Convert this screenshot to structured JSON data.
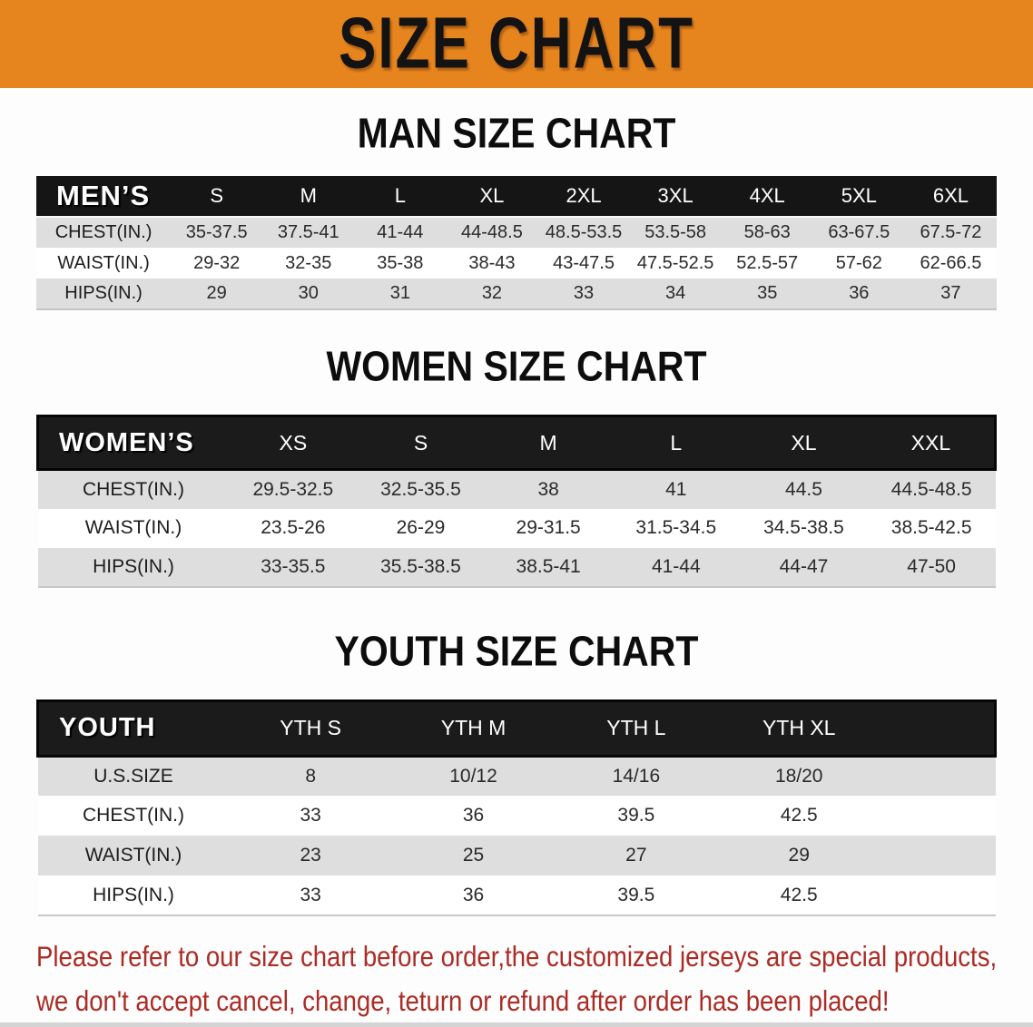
{
  "banner": {
    "title": "SIZE CHART"
  },
  "sections": [
    {
      "title": "MAN SIZE CHART",
      "header_label": "MEN’S",
      "columns": [
        "S",
        "M",
        "L",
        "XL",
        "2XL",
        "3XL",
        "4XL",
        "5XL",
        "6XL"
      ],
      "rows": [
        {
          "label": "CHEST(IN.)",
          "values": [
            "35-37.5",
            "37.5-41",
            "41-44",
            "44-48.5",
            "48.5-53.5",
            "53.5-58",
            "58-63",
            "63-67.5",
            "67.5-72"
          ]
        },
        {
          "label": "WAIST(IN.)",
          "values": [
            "29-32",
            "32-35",
            "35-38",
            "38-43",
            "43-47.5",
            "47.5-52.5",
            "52.5-57",
            "57-62",
            "62-66.5"
          ]
        },
        {
          "label": "HIPS(IN.)",
          "values": [
            "29",
            "30",
            "31",
            "32",
            "33",
            "34",
            "35",
            "36",
            "37"
          ]
        }
      ]
    },
    {
      "title": "WOMEN SIZE CHART",
      "header_label": "WOMEN’S",
      "columns": [
        "XS",
        "S",
        "M",
        "L",
        "XL",
        "XXL"
      ],
      "rows": [
        {
          "label": "CHEST(IN.)",
          "values": [
            "29.5-32.5",
            "32.5-35.5",
            "38",
            "41",
            "44.5",
            "44.5-48.5"
          ]
        },
        {
          "label": "WAIST(IN.)",
          "values": [
            "23.5-26",
            "26-29",
            "29-31.5",
            "31.5-34.5",
            "34.5-38.5",
            "38.5-42.5"
          ]
        },
        {
          "label": "HIPS(IN.)",
          "values": [
            "33-35.5",
            "35.5-38.5",
            "38.5-41",
            "41-44",
            "44-47",
            "47-50"
          ]
        }
      ]
    },
    {
      "title": "YOUTH SIZE CHART",
      "header_label": "YOUTH",
      "columns": [
        "YTH S",
        "YTH M",
        "YTH L",
        "YTH XL"
      ],
      "rows": [
        {
          "label": "U.S.SIZE",
          "values": [
            "8",
            "10/12",
            "14/16",
            "18/20"
          ]
        },
        {
          "label": "CHEST(IN.)",
          "values": [
            "33",
            "36",
            "39.5",
            "42.5"
          ]
        },
        {
          "label": "WAIST(IN.)",
          "values": [
            "23",
            "25",
            "27",
            "29"
          ]
        },
        {
          "label": "HIPS(IN.)",
          "values": [
            "33",
            "36",
            "39.5",
            "42.5"
          ]
        }
      ]
    }
  ],
  "disclaimer": {
    "line1": "Please refer to our size chart before order,the customized jerseys are special products,",
    "line2": "we don't accept cancel, change, teturn or refund after order has been placed!"
  },
  "colors": {
    "banner_orange": "#E6851E",
    "header_black": "#151515",
    "row_gray": "#DEDEDE",
    "disclaimer_red": "#AC2B24"
  }
}
